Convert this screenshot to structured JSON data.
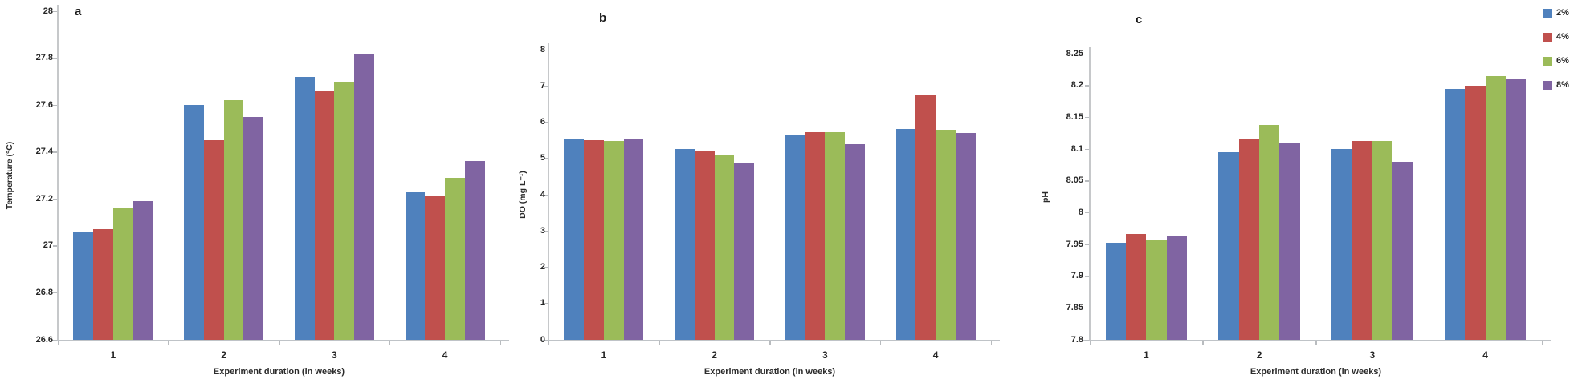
{
  "legend": {
    "position": "top-right",
    "items": [
      {
        "label": "2%",
        "color": "#4F81BD"
      },
      {
        "label": "4%",
        "color": "#C0504D"
      },
      {
        "label": "6%",
        "color": "#9BBB59"
      },
      {
        "label": "8%",
        "color": "#8064A2"
      }
    ]
  },
  "chart_data": [
    {
      "type": "bar",
      "panel_label": "a",
      "categories": [
        "1",
        "2",
        "3",
        "4"
      ],
      "xlabel": "Experiment duration (in weeks)",
      "ylabel": "Temperature (°C)",
      "ylim": [
        26.6,
        28
      ],
      "yticks": [
        "26.6",
        "26.8",
        "27",
        "27.2",
        "27.4",
        "27.6",
        "27.8",
        "28"
      ],
      "grid": false,
      "legend_position": "figure-top-right",
      "series": [
        {
          "name": "2%",
          "color": "#4F81BD",
          "values": [
            27.06,
            27.6,
            27.72,
            27.23
          ]
        },
        {
          "name": "4%",
          "color": "#C0504D",
          "values": [
            27.07,
            27.45,
            27.66,
            27.21
          ]
        },
        {
          "name": "6%",
          "color": "#9BBB59",
          "values": [
            27.16,
            27.62,
            27.7,
            27.29
          ]
        },
        {
          "name": "8%",
          "color": "#8064A2",
          "values": [
            27.19,
            27.55,
            27.82,
            27.36
          ]
        }
      ]
    },
    {
      "type": "bar",
      "panel_label": "b",
      "categories": [
        "1",
        "2",
        "3",
        "4"
      ],
      "xlabel": "Experiment duration (in weeks)",
      "ylabel": "DO (mg L⁻¹)",
      "ylim": [
        0,
        8
      ],
      "yticks": [
        "0",
        "1",
        "2",
        "3",
        "4",
        "5",
        "6",
        "7",
        "8"
      ],
      "grid": false,
      "legend_position": "figure-top-right",
      "series": [
        {
          "name": "2%",
          "color": "#4F81BD",
          "values": [
            5.55,
            5.25,
            5.65,
            5.82
          ]
        },
        {
          "name": "4%",
          "color": "#C0504D",
          "values": [
            5.51,
            5.2,
            5.72,
            6.75
          ]
        },
        {
          "name": "6%",
          "color": "#9BBB59",
          "values": [
            5.49,
            5.1,
            5.72,
            5.78
          ]
        },
        {
          "name": "8%",
          "color": "#8064A2",
          "values": [
            5.53,
            4.87,
            5.4,
            5.7
          ]
        }
      ]
    },
    {
      "type": "bar",
      "panel_label": "c",
      "categories": [
        "1",
        "2",
        "3",
        "4"
      ],
      "xlabel": "Experiment duration (in weeks)",
      "ylabel": "pH",
      "ylim": [
        7.8,
        8.25
      ],
      "yticks": [
        "7.8",
        "7.85",
        "7.9",
        "7.95",
        "8",
        "8.05",
        "8.1",
        "8.15",
        "8.2",
        "8.25"
      ],
      "grid": false,
      "legend_position": "figure-top-right",
      "series": [
        {
          "name": "2%",
          "color": "#4F81BD",
          "values": [
            7.952,
            8.095,
            8.1,
            8.195
          ]
        },
        {
          "name": "4%",
          "color": "#C0504D",
          "values": [
            7.967,
            8.115,
            8.112,
            8.2
          ]
        },
        {
          "name": "6%",
          "color": "#9BBB59",
          "values": [
            7.956,
            8.138,
            8.112,
            8.215
          ]
        },
        {
          "name": "8%",
          "color": "#8064A2",
          "values": [
            7.962,
            8.11,
            8.08,
            8.21
          ]
        }
      ]
    }
  ]
}
